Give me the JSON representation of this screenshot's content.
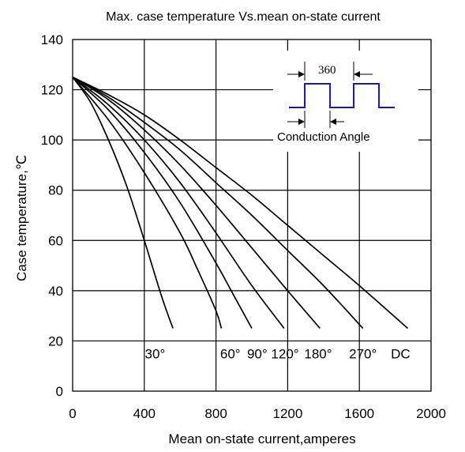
{
  "chart_data": {
    "type": "line",
    "title": "Max. case temperature Vs.mean on-state current",
    "xlabel": "Mean on-state current,amperes",
    "ylabel": "Case temperature,℃",
    "xlim": [
      0,
      2000
    ],
    "ylim": [
      0,
      140
    ],
    "x_ticks": [
      "0",
      "400",
      "800",
      "1200",
      "1600",
      "2000"
    ],
    "y_ticks": [
      "0",
      "20",
      "40",
      "60",
      "80",
      "100",
      "120",
      "140"
    ],
    "grid": true,
    "series": [
      {
        "name": "30°",
        "label": "30°",
        "label_x": 460,
        "label_y": 13,
        "x": [
          0,
          100,
          200,
          300,
          400,
          500,
          560
        ],
        "y": [
          125,
          115,
          100,
          82,
          60,
          37,
          25
        ]
      },
      {
        "name": "60°",
        "label": "60°",
        "label_x": 880,
        "label_y": 13,
        "x": [
          0,
          200,
          400,
          600,
          700,
          800,
          830
        ],
        "y": [
          125,
          108,
          87,
          63,
          48,
          32,
          25
        ]
      },
      {
        "name": "90°",
        "label": "90°",
        "label_x": 1030,
        "label_y": 13,
        "x": [
          0,
          200,
          400,
          600,
          800,
          900,
          1000
        ],
        "y": [
          125,
          112,
          95,
          75,
          51,
          38,
          25
        ]
      },
      {
        "name": "120°",
        "label": "120°",
        "label_x": 1185,
        "label_y": 13,
        "x": [
          0,
          200,
          400,
          600,
          800,
          1000,
          1180
        ],
        "y": [
          125,
          114,
          100,
          83,
          63,
          42,
          25
        ]
      },
      {
        "name": "180°",
        "label": "180°",
        "label_x": 1370,
        "label_y": 13,
        "x": [
          0,
          200,
          400,
          600,
          800,
          1000,
          1200,
          1380
        ],
        "y": [
          125,
          116,
          104,
          90,
          74,
          57,
          40,
          25
        ]
      },
      {
        "name": "270°",
        "label": "270°",
        "label_x": 1620,
        "label_y": 13,
        "x": [
          0,
          200,
          400,
          600,
          800,
          1000,
          1200,
          1400,
          1620
        ],
        "y": [
          125,
          117,
          107,
          96,
          83,
          70,
          56,
          42,
          25
        ]
      },
      {
        "name": "DC",
        "label": "DC",
        "label_x": 1830,
        "label_y": 13,
        "x": [
          0,
          200,
          400,
          600,
          800,
          1000,
          1200,
          1400,
          1600,
          1870
        ],
        "y": [
          125,
          118,
          110,
          100,
          89,
          78,
          66,
          54,
          42,
          25
        ]
      }
    ],
    "inset": {
      "top_label": "360",
      "bottom_label": "Conduction Angle"
    }
  }
}
